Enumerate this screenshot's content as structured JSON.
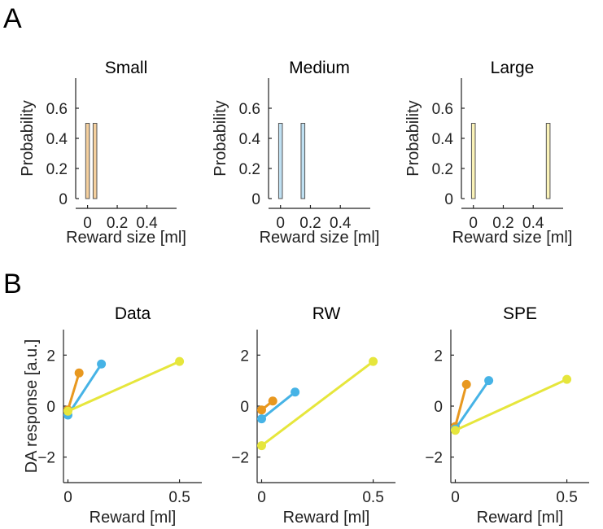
{
  "figure": {
    "panel_a_letter": "A",
    "panel_b_letter": "B"
  },
  "chart_data": [
    {
      "type": "bar",
      "panel": "A",
      "title": "Small",
      "xlabel": "Reward size [ml]",
      "ylabel": "Probability",
      "xlim": [
        -0.08,
        0.6
      ],
      "ylim": [
        0,
        0.8
      ],
      "xticks": [
        0,
        0.2,
        0.4
      ],
      "xtick_labels": [
        "0",
        "0.2",
        "0.4"
      ],
      "yticks": [
        0,
        0.2,
        0.4,
        0.6
      ],
      "ytick_labels": [
        "0",
        "0.2",
        "0.4",
        "0.6"
      ],
      "bar_width": 0.025,
      "color": "#f5d09e",
      "bars": [
        {
          "x": 0.0,
          "value": 0.5
        },
        {
          "x": 0.05,
          "value": 0.5
        }
      ]
    },
    {
      "type": "bar",
      "panel": "A",
      "title": "Medium",
      "xlabel": "Reward size [ml]",
      "ylabel": "Probability",
      "xlim": [
        -0.08,
        0.6
      ],
      "ylim": [
        0,
        0.8
      ],
      "xticks": [
        0,
        0.2,
        0.4
      ],
      "xtick_labels": [
        "0",
        "0.2",
        "0.4"
      ],
      "yticks": [
        0,
        0.2,
        0.4,
        0.6
      ],
      "ytick_labels": [
        "0",
        "0.2",
        "0.4",
        "0.6"
      ],
      "bar_width": 0.025,
      "color": "#bfe0f2",
      "bars": [
        {
          "x": 0.0,
          "value": 0.5
        },
        {
          "x": 0.15,
          "value": 0.5
        }
      ]
    },
    {
      "type": "bar",
      "panel": "A",
      "title": "Large",
      "xlabel": "Reward size [ml]",
      "ylabel": "Probability",
      "xlim": [
        -0.08,
        0.6
      ],
      "ylim": [
        0,
        0.8
      ],
      "xticks": [
        0,
        0.2,
        0.4
      ],
      "xtick_labels": [
        "0",
        "0.2",
        "0.4"
      ],
      "yticks": [
        0,
        0.2,
        0.4,
        0.6
      ],
      "ytick_labels": [
        "0",
        "0.2",
        "0.4",
        "0.6"
      ],
      "bar_width": 0.025,
      "color": "#fbf3b8",
      "bars": [
        {
          "x": 0.0,
          "value": 0.5
        },
        {
          "x": 0.5,
          "value": 0.5
        }
      ]
    },
    {
      "type": "line",
      "panel": "B",
      "title": "Data",
      "xlabel": "Reward [ml]",
      "ylabel": "DA response [a.u.]",
      "xlim": [
        -0.02,
        0.6
      ],
      "ylim": [
        -3,
        3
      ],
      "xticks": [
        0,
        0.5
      ],
      "xtick_labels": [
        "0",
        "0.5"
      ],
      "yticks": [
        -2,
        0,
        2
      ],
      "ytick_labels": [
        "−2",
        "0",
        "2"
      ],
      "series": [
        {
          "name": "Small",
          "color": "#e8981f",
          "x": [
            0,
            0.05
          ],
          "y": [
            -0.15,
            1.3
          ]
        },
        {
          "name": "Medium",
          "color": "#46b3e6",
          "x": [
            0,
            0.15
          ],
          "y": [
            -0.35,
            1.65
          ]
        },
        {
          "name": "Large",
          "color": "#e6e63c",
          "x": [
            0,
            0.5
          ],
          "y": [
            -0.2,
            1.75
          ]
        }
      ]
    },
    {
      "type": "line",
      "panel": "B",
      "title": "RW",
      "xlabel": "Reward [ml]",
      "ylabel": "",
      "xlim": [
        -0.02,
        0.6
      ],
      "ylim": [
        -3,
        3
      ],
      "xticks": [
        0,
        0.5
      ],
      "xtick_labels": [
        "0",
        "0.5"
      ],
      "yticks": [
        -2,
        0,
        2
      ],
      "ytick_labels": [
        "−2",
        "0",
        "2"
      ],
      "series": [
        {
          "name": "Small",
          "color": "#e8981f",
          "x": [
            0,
            0.05
          ],
          "y": [
            -0.15,
            0.2
          ]
        },
        {
          "name": "Medium",
          "color": "#46b3e6",
          "x": [
            0,
            0.15
          ],
          "y": [
            -0.5,
            0.55
          ]
        },
        {
          "name": "Large",
          "color": "#e6e63c",
          "x": [
            0,
            0.5
          ],
          "y": [
            -1.55,
            1.75
          ]
        }
      ]
    },
    {
      "type": "line",
      "panel": "B",
      "title": "SPE",
      "xlabel": "Reward [ml]",
      "ylabel": "",
      "xlim": [
        -0.02,
        0.6
      ],
      "ylim": [
        -3,
        3
      ],
      "xticks": [
        0,
        0.5
      ],
      "xtick_labels": [
        "0",
        "0.5"
      ],
      "yticks": [
        -2,
        0,
        2
      ],
      "ytick_labels": [
        "−2",
        "0",
        "2"
      ],
      "series": [
        {
          "name": "Small",
          "color": "#e8981f",
          "x": [
            0,
            0.05
          ],
          "y": [
            -0.8,
            0.85
          ]
        },
        {
          "name": "Medium",
          "color": "#46b3e6",
          "x": [
            0,
            0.15
          ],
          "y": [
            -0.9,
            1.0
          ]
        },
        {
          "name": "Large",
          "color": "#e6e63c",
          "x": [
            0,
            0.5
          ],
          "y": [
            -0.95,
            1.05
          ]
        }
      ]
    }
  ]
}
